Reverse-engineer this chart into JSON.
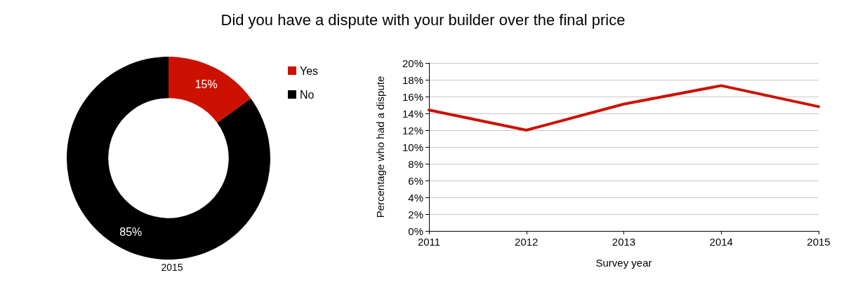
{
  "chart_data": [
    {
      "type": "donut",
      "title": "Did you have a dispute with your builder over the final price",
      "xlabel": "2015",
      "categories": [
        "Yes",
        "No"
      ],
      "values": [
        15,
        85
      ],
      "colors": [
        "#cc1100",
        "#000000"
      ],
      "value_labels": [
        "15%",
        "85%"
      ],
      "legend": "top right"
    },
    {
      "type": "line",
      "xlabel": "Survey year",
      "ylabel": "Percentage who had a dispute",
      "x": [
        2011,
        2012,
        2013,
        2014,
        2015
      ],
      "series": [
        {
          "color": "#cc1100",
          "values": [
            14.4,
            12.0,
            15.1,
            17.3,
            14.8
          ]
        }
      ],
      "xlim": [
        2011,
        2015
      ],
      "xticks": [
        2011,
        2012,
        2013,
        2014,
        2015
      ],
      "ylim": [
        0,
        20
      ],
      "yticks": [
        {
          "value": 0,
          "label": "0%"
        },
        {
          "value": 2,
          "label": "2%"
        },
        {
          "value": 4,
          "label": "4%"
        },
        {
          "value": 6,
          "label": "6%"
        },
        {
          "value": 8,
          "label": "8%"
        },
        {
          "value": 10,
          "label": "10%"
        },
        {
          "value": 12,
          "label": "12%"
        },
        {
          "value": 14,
          "label": "14%"
        },
        {
          "value": 16,
          "label": "16%"
        },
        {
          "value": 18,
          "label": "18%"
        },
        {
          "value": 20,
          "label": "20%"
        }
      ],
      "grid": "y",
      "marker": "none",
      "line_style": "solid",
      "legend": false
    }
  ]
}
